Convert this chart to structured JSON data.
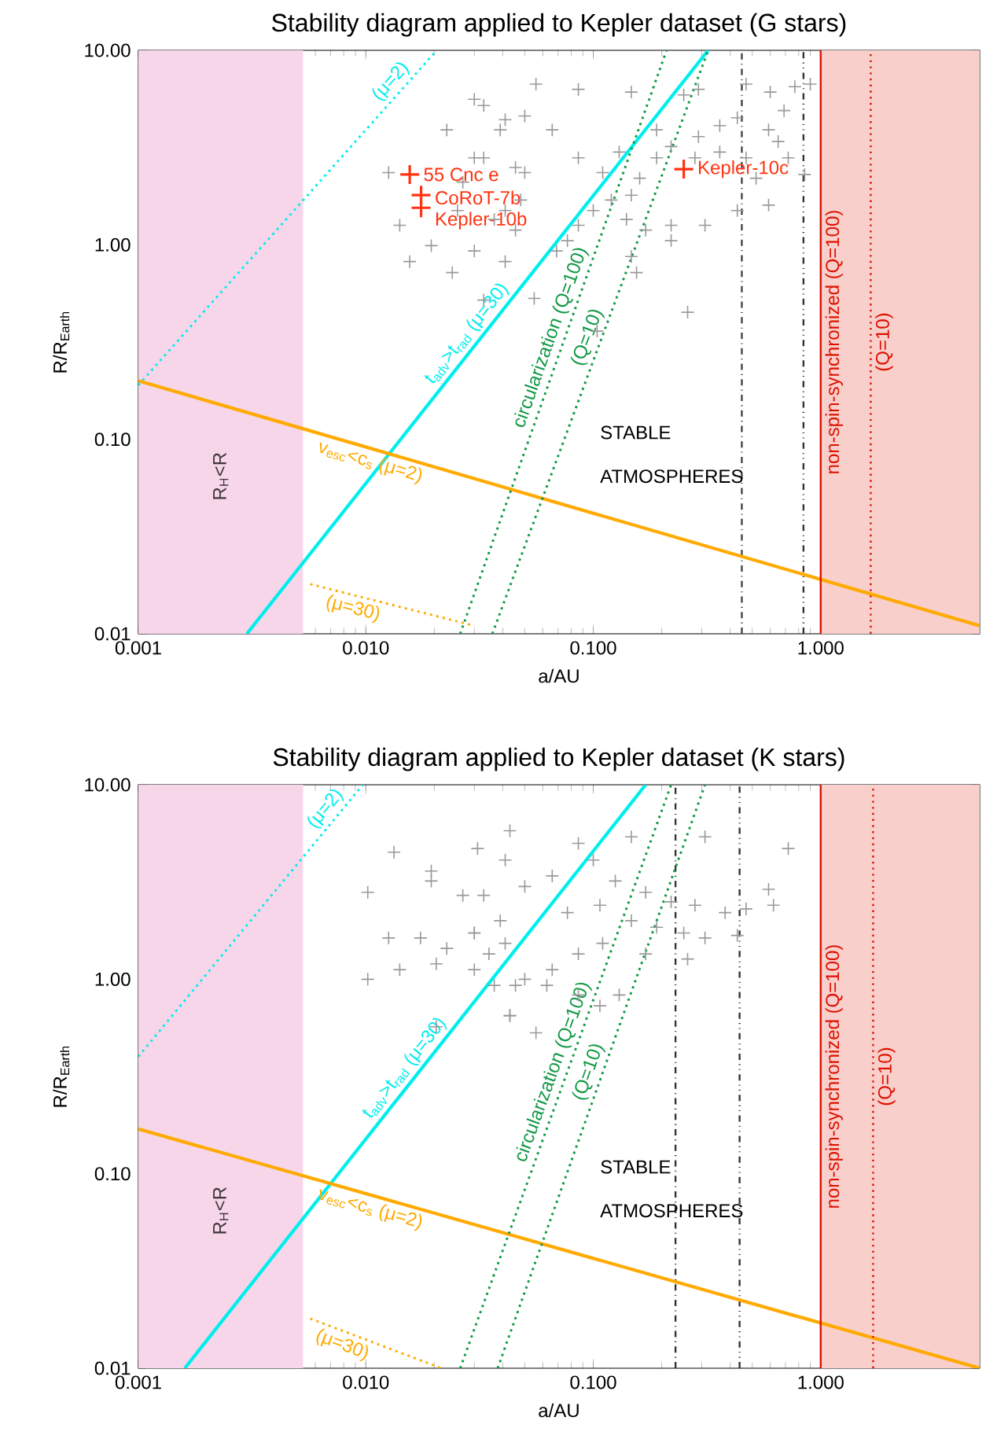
{
  "chart_data": [
    {
      "type": "scatter",
      "title": "Stability diagram applied to Kepler dataset (G stars)",
      "xlabel": "a/AU",
      "ylabel": "R/R$_{Earth}$",
      "log": "xy",
      "xlim": [
        0.001,
        5
      ],
      "ylim": [
        0.01,
        10
      ],
      "xticks": [
        {
          "value": 0.001,
          "label": "0.001"
        },
        {
          "value": 0.01,
          "label": "0.010"
        },
        {
          "value": 0.1,
          "label": "0.100"
        },
        {
          "value": 1,
          "label": "1.000"
        }
      ],
      "yticks": [
        {
          "value": 0.01,
          "label": "0.01"
        },
        {
          "value": 0.1,
          "label": "0.10"
        },
        {
          "value": 1,
          "label": "1.00"
        },
        {
          "value": 10,
          "label": "10.00"
        }
      ],
      "series": [
        {
          "marker": "cross",
          "color": "#999999",
          "x": [
            0.056,
            0.086,
            0.147,
            0.25,
            0.29,
            0.47,
            0.6,
            0.77,
            0.9,
            0.69,
            0.43,
            0.36,
            0.59,
            0.29,
            0.22,
            0.19,
            0.28,
            0.36,
            0.47,
            0.65,
            0.72,
            0.16,
            0.147,
            0.12,
            0.1,
            0.086,
            0.077,
            0.069,
            0.14,
            0.17,
            0.22,
            0.31,
            0.43,
            0.59,
            0.22,
            0.147,
            0.155,
            0.104,
            0.26,
            0.055,
            0.85,
            0.52,
            0.11,
            0.19,
            0.13,
            0.05,
            0.039,
            0.03,
            0.033,
            0.066,
            0.086,
            0.05,
            0.041,
            0.03,
            0.041,
            0.0227,
            0.033,
            0.0455,
            0.0253,
            0.0367,
            0.0141,
            0.0194,
            0.03,
            0.041,
            0.0156,
            0.024,
            0.033,
            0.0126,
            0.0455,
            0.0267,
            0.048
          ],
          "values": [
            6.7,
            6.3,
            6.1,
            5.9,
            6.3,
            6.7,
            6.1,
            6.5,
            6.7,
            4.9,
            4.5,
            4.1,
            3.9,
            3.6,
            3.2,
            2.8,
            2.8,
            3.0,
            2.8,
            3.4,
            2.8,
            2.2,
            1.8,
            1.7,
            1.5,
            1.26,
            1.05,
            0.93,
            1.35,
            1.19,
            1.26,
            1.26,
            1.5,
            1.6,
            1.05,
            0.87,
            0.72,
            0.36,
            0.45,
            0.53,
            2.3,
            2.2,
            2.35,
            3.9,
            3.0,
            4.6,
            3.9,
            2.8,
            5.2,
            3.9,
            2.8,
            2.35,
            1.5,
            5.6,
            4.4,
            3.9,
            2.8,
            2.5,
            1.5,
            1.35,
            1.26,
            0.99,
            0.93,
            0.82,
            0.82,
            0.72,
            0.52,
            2.35,
            1.19,
            2.1,
            1.7
          ]
        },
        {
          "marker": "cross",
          "color": "#ff3311",
          "x": [
            0.0156,
            0.0175,
            0.0175,
            0.25
          ],
          "values": [
            2.3,
            1.8,
            1.55,
            2.45
          ]
        },
        {
          "type": "line",
          "name": "t$_{adv}$>t$_{rad}$ (μ=30)",
          "color": "#00eeee",
          "line_style": "solid",
          "x": [
            0.003,
            0.32
          ],
          "values": [
            0.01,
            10
          ]
        },
        {
          "type": "line",
          "name": "(μ=2)",
          "color": "#00eeee",
          "line_style": "dotted",
          "x": [
            0.001,
            0.0205
          ],
          "values": [
            0.19,
            10
          ]
        },
        {
          "type": "line",
          "name": "v$_{esc}$<c$_{s}$ (μ=2)",
          "color": "#ffaa00",
          "line_style": "solid",
          "x": [
            0.001,
            5
          ],
          "values": [
            0.2,
            0.011
          ]
        },
        {
          "type": "line",
          "name": "(μ=30)",
          "color": "#ffaa00",
          "line_style": "dotted",
          "x": [
            0.0057,
            0.03
          ],
          "values": [
            0.018,
            0.011
          ]
        },
        {
          "type": "line",
          "name": "circularization (Q=100)",
          "color": "#119944",
          "line_style": "dotted",
          "x": [
            0.026,
            0.21
          ],
          "values": [
            0.01,
            10
          ]
        },
        {
          "type": "line",
          "name": "(Q=10)",
          "color": "#119944",
          "line_style": "dotted",
          "x": [
            0.036,
            0.32
          ],
          "values": [
            0.01,
            10
          ]
        },
        {
          "type": "line",
          "name": "non-spin-synchronized (Q=100)",
          "color": "#dd1100",
          "line_style": "solid",
          "x": [
            1,
            1
          ],
          "values": [
            0.01,
            10
          ]
        },
        {
          "type": "line",
          "name": "(Q=10)",
          "color": "#dd1100",
          "line_style": "dotted",
          "x": [
            1.66,
            1.66
          ],
          "values": [
            0.01,
            10
          ]
        }
      ],
      "ref_lines": [
        {
          "axis": "x",
          "value": 0.45,
          "color": "#333333",
          "line_style": "dashdot"
        },
        {
          "axis": "x",
          "value": 0.84,
          "color": "#333333",
          "line_style": "dashdotdot"
        }
      ],
      "bands": [
        {
          "axis": "x",
          "from": 0.001,
          "to": 0.0053,
          "color": "#f7d6ea",
          "label": "R$_{H}$<R"
        },
        {
          "axis": "x",
          "from": 1,
          "to": 5,
          "color": "#f8cfcb"
        }
      ],
      "annotations": [
        {
          "text": "55 Cnc e",
          "x": 0.0156,
          "y": 2.3
        },
        {
          "text": "CoRoT-7b",
          "x": 0.0175,
          "y": 1.8
        },
        {
          "text": "Kepler-10b",
          "x": 0.0175,
          "y": 1.55
        },
        {
          "text": "Kepler-10c",
          "x": 0.25,
          "y": 2.45
        },
        "STABLE",
        "ATMOSPHERES"
      ]
    },
    {
      "type": "scatter",
      "title": "Stability diagram applied to Kepler dataset (K stars)",
      "xlabel": "a/AU",
      "ylabel": "R/R$_{Earth}$",
      "log": "xy",
      "xlim": [
        0.001,
        5
      ],
      "ylim": [
        0.01,
        10
      ],
      "xticks": [
        {
          "value": 0.001,
          "label": "0.001"
        },
        {
          "value": 0.01,
          "label": "0.010"
        },
        {
          "value": 0.1,
          "label": "0.100"
        },
        {
          "value": 1,
          "label": "1.000"
        }
      ],
      "yticks": [
        {
          "value": 0.01,
          "label": "0.01"
        },
        {
          "value": 0.1,
          "label": "0.10"
        },
        {
          "value": 1,
          "label": "1.00"
        },
        {
          "value": 10,
          "label": "10.00"
        }
      ],
      "series": [
        {
          "marker": "cross",
          "color": "#999999",
          "x": [
            0.0133,
            0.0194,
            0.0102,
            0.031,
            0.041,
            0.0126,
            0.0174,
            0.0227,
            0.03,
            0.0348,
            0.041,
            0.0102,
            0.0141,
            0.0204,
            0.03,
            0.0455,
            0.0367,
            0.0204,
            0.043,
            0.0267,
            0.0194,
            0.043,
            0.086,
            0.147,
            0.31,
            0.72,
            0.59,
            0.62,
            0.38,
            0.47,
            0.28,
            0.22,
            0.17,
            0.125,
            0.1,
            0.066,
            0.05,
            0.033,
            0.107,
            0.147,
            0.19,
            0.25,
            0.31,
            0.43,
            0.26,
            0.17,
            0.11,
            0.086,
            0.066,
            0.05,
            0.043,
            0.056,
            0.086,
            0.107,
            0.13,
            0.0625,
            0.039,
            0.03,
            0.077
          ],
          "values": [
            4.5,
            3.6,
            2.8,
            4.7,
            4.1,
            1.63,
            1.63,
            1.44,
            1.73,
            1.35,
            1.53,
            1.0,
            1.12,
            1.2,
            1.12,
            0.93,
            0.93,
            0.57,
            0.65,
            2.7,
            3.2,
            5.8,
            5.0,
            5.4,
            5.4,
            4.7,
            2.9,
            2.4,
            2.2,
            2.3,
            2.4,
            2.5,
            2.8,
            3.2,
            4.1,
            3.4,
            3.0,
            2.7,
            2.4,
            2.0,
            1.85,
            1.73,
            1.63,
            1.68,
            1.27,
            1.35,
            1.53,
            1.35,
            1.12,
            1.0,
            0.65,
            0.53,
            0.83,
            0.73,
            0.83,
            0.93,
            2.0,
            1.73,
            2.2
          ]
        },
        {
          "type": "line",
          "name": "t$_{adv}$>t$_{rad}$ (μ=30)",
          "color": "#00eeee",
          "line_style": "solid",
          "x": [
            0.0016,
            0.17
          ],
          "values": [
            0.01,
            10
          ]
        },
        {
          "type": "line",
          "name": "(μ=2)",
          "color": "#00eeee",
          "line_style": "dotted",
          "x": [
            0.001,
            0.0097
          ],
          "values": [
            0.4,
            10
          ]
        },
        {
          "type": "line",
          "name": "v$_{esc}$<c$_{s}$ (μ=2)",
          "color": "#ffaa00",
          "line_style": "solid",
          "x": [
            0.001,
            5
          ],
          "values": [
            0.17,
            0.01
          ]
        },
        {
          "type": "line",
          "name": "(μ=30)",
          "color": "#ffaa00",
          "line_style": "dotted",
          "x": [
            0.0057,
            0.0215
          ],
          "values": [
            0.018,
            0.01
          ]
        },
        {
          "type": "line",
          "name": "circularization (Q=100)",
          "color": "#119944",
          "line_style": "dotted",
          "x": [
            0.026,
            0.22
          ],
          "values": [
            0.01,
            10
          ]
        },
        {
          "type": "line",
          "name": "(Q=10)",
          "color": "#119944",
          "line_style": "dotted",
          "x": [
            0.038,
            0.31
          ],
          "values": [
            0.01,
            10
          ]
        },
        {
          "type": "line",
          "name": "non-spin-synchronized (Q=100)",
          "color": "#dd1100",
          "line_style": "solid",
          "x": [
            1,
            1
          ],
          "values": [
            0.01,
            10
          ]
        },
        {
          "type": "line",
          "name": "(Q=10)",
          "color": "#dd1100",
          "line_style": "dotted",
          "x": [
            1.7,
            1.7
          ],
          "values": [
            0.01,
            10
          ]
        }
      ],
      "ref_lines": [
        {
          "axis": "x",
          "value": 0.23,
          "color": "#333333",
          "line_style": "dashdot"
        },
        {
          "axis": "x",
          "value": 0.44,
          "color": "#333333",
          "line_style": "dashdotdot"
        }
      ],
      "bands": [
        {
          "axis": "x",
          "from": 0.001,
          "to": 0.0053,
          "color": "#f7d6ea",
          "label": "R$_{H}$<R"
        },
        {
          "axis": "x",
          "from": 1,
          "to": 5,
          "color": "#f8cfcb"
        }
      ],
      "annotations": [
        "STABLE",
        "ATMOSPHERES"
      ]
    }
  ]
}
